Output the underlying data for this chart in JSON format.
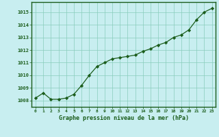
{
  "x": [
    0,
    1,
    2,
    3,
    4,
    5,
    6,
    7,
    8,
    9,
    10,
    11,
    12,
    13,
    14,
    15,
    16,
    17,
    18,
    19,
    20,
    21,
    22,
    23
  ],
  "y": [
    1008.2,
    1008.6,
    1008.1,
    1008.1,
    1008.2,
    1008.5,
    1009.2,
    1010.0,
    1010.7,
    1011.0,
    1011.3,
    1011.4,
    1011.5,
    1011.6,
    1011.9,
    1012.1,
    1012.4,
    1012.6,
    1013.0,
    1013.2,
    1013.6,
    1014.4,
    1015.0,
    1015.3
  ],
  "line_color": "#1a5c1a",
  "marker_color": "#1a5c1a",
  "bg_color": "#c8eef0",
  "grid_color": "#88ccbb",
  "xlabel": "Graphe pression niveau de la mer (hPa)",
  "xlabel_color": "#1a5c1a",
  "ylim": [
    1007.5,
    1015.8
  ],
  "xlim": [
    -0.5,
    23.5
  ],
  "yticks": [
    1008,
    1009,
    1010,
    1011,
    1012,
    1013,
    1014,
    1015
  ],
  "xticks": [
    0,
    1,
    2,
    3,
    4,
    5,
    6,
    7,
    8,
    9,
    10,
    11,
    12,
    13,
    14,
    15,
    16,
    17,
    18,
    19,
    20,
    21,
    22,
    23
  ],
  "tick_label_color": "#1a5c1a",
  "border_color": "#1a5c1a"
}
